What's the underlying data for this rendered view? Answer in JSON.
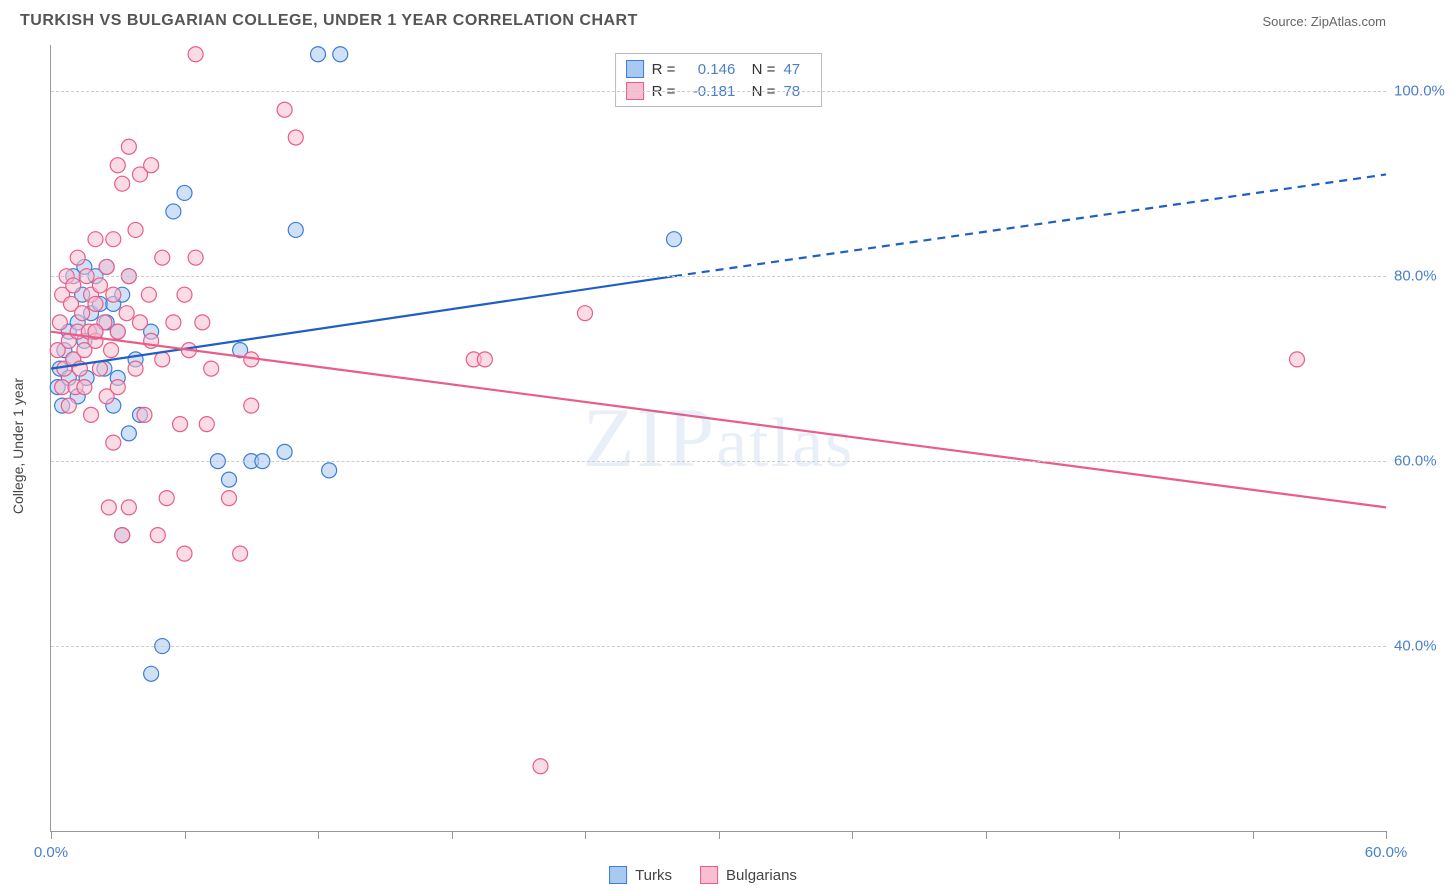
{
  "title": "TURKISH VS BULGARIAN COLLEGE, UNDER 1 YEAR CORRELATION CHART",
  "source": "Source: ZipAtlas.com",
  "watermark": "ZIPatlas",
  "ylabel": "College, Under 1 year",
  "chart": {
    "type": "scatter-with-regression",
    "xlim": [
      0,
      60
    ],
    "ylim": [
      20,
      105
    ],
    "yticks": [
      40,
      60,
      80,
      100
    ],
    "ytick_labels": [
      "40.0%",
      "60.0%",
      "80.0%",
      "100.0%"
    ],
    "xticks": [
      0,
      6,
      12,
      18,
      24,
      30,
      36,
      42,
      48,
      54,
      60
    ],
    "xtick_labels": {
      "0": "0.0%",
      "60": "60.0%"
    },
    "grid_color": "#cccccc",
    "background_color": "#ffffff",
    "series": [
      {
        "name": "Turks",
        "label": "Turks",
        "color_stroke": "#3b7dd8",
        "color_fill": "#a9c9f0",
        "R": "0.146",
        "N": "47",
        "marker_r": 7.5,
        "line": {
          "x1": 0,
          "y1": 70,
          "x2_solid": 28,
          "y2_solid": 80,
          "x2_dash": 60,
          "y2_dash": 91,
          "color": "#1f5fc4",
          "width": 2.2
        },
        "points": [
          [
            0.3,
            68
          ],
          [
            0.4,
            70
          ],
          [
            0.5,
            66
          ],
          [
            0.6,
            72
          ],
          [
            0.8,
            74
          ],
          [
            0.8,
            69
          ],
          [
            1.0,
            80
          ],
          [
            1.0,
            71
          ],
          [
            1.2,
            75
          ],
          [
            1.2,
            67
          ],
          [
            1.4,
            78
          ],
          [
            1.5,
            81
          ],
          [
            1.5,
            73
          ],
          [
            1.6,
            69
          ],
          [
            1.8,
            76
          ],
          [
            2.0,
            74
          ],
          [
            2.0,
            80
          ],
          [
            2.2,
            77
          ],
          [
            2.4,
            70
          ],
          [
            2.5,
            75
          ],
          [
            2.5,
            81
          ],
          [
            2.8,
            66
          ],
          [
            2.8,
            77
          ],
          [
            3.0,
            74
          ],
          [
            3.0,
            69
          ],
          [
            3.2,
            52
          ],
          [
            3.2,
            78
          ],
          [
            3.5,
            63
          ],
          [
            3.5,
            80
          ],
          [
            3.8,
            71
          ],
          [
            4.0,
            65
          ],
          [
            4.5,
            37
          ],
          [
            4.5,
            74
          ],
          [
            5.0,
            40
          ],
          [
            5.5,
            87
          ],
          [
            6.0,
            89
          ],
          [
            7.5,
            60
          ],
          [
            8.0,
            58
          ],
          [
            8.5,
            72
          ],
          [
            9.0,
            60
          ],
          [
            9.5,
            60
          ],
          [
            10.5,
            61
          ],
          [
            11.0,
            85
          ],
          [
            12.0,
            104
          ],
          [
            12.5,
            59
          ],
          [
            13.0,
            104
          ],
          [
            28.0,
            84
          ]
        ]
      },
      {
        "name": "Bulgarians",
        "label": "Bulgarians",
        "color_stroke": "#e85d8a",
        "color_fill": "#f7bfd0",
        "R": "-0.181",
        "N": "78",
        "marker_r": 7.5,
        "line": {
          "x1": 0,
          "y1": 74,
          "x2_solid": 60,
          "y2_solid": 55,
          "x2_dash": 60,
          "y2_dash": 55,
          "color": "#e85d8a",
          "width": 2.2
        },
        "points": [
          [
            0.3,
            72
          ],
          [
            0.4,
            75
          ],
          [
            0.5,
            68
          ],
          [
            0.5,
            78
          ],
          [
            0.6,
            70
          ],
          [
            0.7,
            80
          ],
          [
            0.8,
            73
          ],
          [
            0.8,
            66
          ],
          [
            0.9,
            77
          ],
          [
            1.0,
            71
          ],
          [
            1.0,
            79
          ],
          [
            1.1,
            68
          ],
          [
            1.2,
            74
          ],
          [
            1.2,
            82
          ],
          [
            1.3,
            70
          ],
          [
            1.4,
            76
          ],
          [
            1.5,
            72
          ],
          [
            1.5,
            68
          ],
          [
            1.6,
            80
          ],
          [
            1.7,
            74
          ],
          [
            1.8,
            78
          ],
          [
            1.8,
            65
          ],
          [
            2.0,
            73
          ],
          [
            2.0,
            77
          ],
          [
            2.0,
            84
          ],
          [
            2.2,
            70
          ],
          [
            2.2,
            79
          ],
          [
            2.4,
            75
          ],
          [
            2.5,
            67
          ],
          [
            2.5,
            81
          ],
          [
            2.6,
            55
          ],
          [
            2.7,
            72
          ],
          [
            2.8,
            78
          ],
          [
            2.8,
            62
          ],
          [
            2.8,
            84
          ],
          [
            3.0,
            74
          ],
          [
            3.0,
            68
          ],
          [
            3.0,
            92
          ],
          [
            3.2,
            52
          ],
          [
            3.2,
            90
          ],
          [
            3.4,
            76
          ],
          [
            3.5,
            55
          ],
          [
            3.5,
            80
          ],
          [
            3.5,
            94
          ],
          [
            3.8,
            70
          ],
          [
            3.8,
            85
          ],
          [
            4.0,
            75
          ],
          [
            4.0,
            91
          ],
          [
            4.2,
            65
          ],
          [
            4.4,
            78
          ],
          [
            4.5,
            73
          ],
          [
            4.5,
            92
          ],
          [
            4.8,
            52
          ],
          [
            5.0,
            71
          ],
          [
            5.0,
            82
          ],
          [
            5.2,
            56
          ],
          [
            5.5,
            75
          ],
          [
            5.8,
            64
          ],
          [
            6.0,
            78
          ],
          [
            6.0,
            50
          ],
          [
            6.2,
            72
          ],
          [
            6.5,
            82
          ],
          [
            6.5,
            104
          ],
          [
            6.8,
            75
          ],
          [
            7.0,
            64
          ],
          [
            7.2,
            70
          ],
          [
            8.0,
            56
          ],
          [
            8.5,
            50
          ],
          [
            9.0,
            66
          ],
          [
            9.0,
            71
          ],
          [
            10.5,
            98
          ],
          [
            11.0,
            95
          ],
          [
            19.0,
            71
          ],
          [
            19.5,
            71
          ],
          [
            22.0,
            27
          ],
          [
            24.0,
            76
          ],
          [
            56.0,
            71
          ],
          [
            2.0,
            74
          ]
        ]
      }
    ]
  },
  "legend_bottom": [
    {
      "label": "Turks",
      "swatch_fill": "#a9c9f0",
      "swatch_stroke": "#3b7dd8"
    },
    {
      "label": "Bulgarians",
      "swatch_fill": "#f7bfd0",
      "swatch_stroke": "#e85d8a"
    }
  ]
}
